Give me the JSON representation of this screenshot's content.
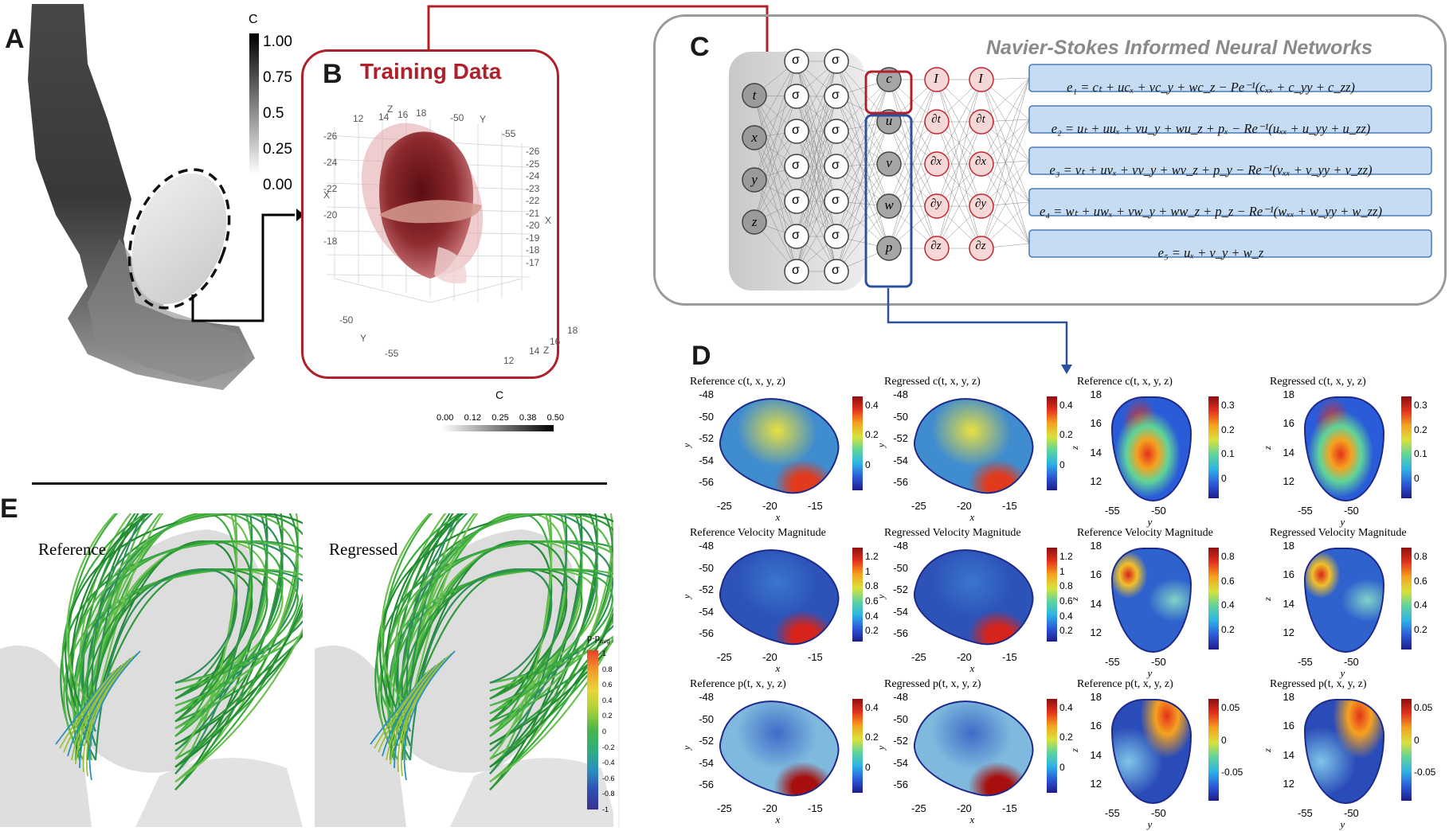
{
  "panels": {
    "A": "A",
    "B": "B",
    "C": "C",
    "D": "D",
    "E": "E"
  },
  "panelA": {
    "colorbar_label": "C",
    "ticks": [
      "1.00",
      "0.75",
      "0.5",
      "0.25",
      "0.00"
    ]
  },
  "panelB": {
    "title": "Training Data",
    "axis_labels": {
      "z_top": "Z",
      "y_top": "Y",
      "x_left": "X",
      "x_right": "X",
      "y_bottom": "Y",
      "z_bottom": "Z"
    },
    "z_ticks_top": [
      "12",
      "14",
      "16",
      "18"
    ],
    "y_ticks_top": [
      "-50",
      "-55"
    ],
    "x_ticks_left": [
      "-26",
      "-24",
      "-22",
      "-20",
      "-18"
    ],
    "right_ticks": [
      "-26",
      "-25",
      "-24",
      "-23",
      "-22",
      "-21",
      "-20",
      "-19",
      "-18",
      "-17"
    ],
    "y_ticks_bottom": [
      "-50",
      "-55"
    ],
    "z_ticks_bottom": [
      "12",
      "14",
      "16",
      "18"
    ],
    "colorbar_label": "C",
    "colorbar_ticks": [
      "0.00",
      "0.12",
      "0.25",
      "0.38",
      "0.50"
    ]
  },
  "panelC": {
    "title": "Navier-Stokes Informed Neural Networks",
    "inputs": [
      "t",
      "x",
      "y",
      "z"
    ],
    "sigma": "σ",
    "outputs": [
      "c",
      "u",
      "v",
      "w",
      "p"
    ],
    "ops_I": "I",
    "ops": [
      "∂t",
      "∂x",
      "∂y",
      "∂z"
    ],
    "equations": [
      "e₁ = cₜ + ucₓ + vc_y + wc_z − Pe⁻¹(cₓₓ + c_yy + c_zz)",
      "e₂ = uₜ + uuₓ + vu_y + wu_z + pₓ − Re⁻¹(uₓₓ + u_yy + u_zz)",
      "e₃ = vₜ + uvₓ + vv_y + wv_z + p_y − Re⁻¹(vₓₓ + v_yy + v_zz)",
      "e₄ = wₜ + uwₓ + vw_y + ww_z + p_z − Re⁻¹(wₓₓ + w_yy + w_zz)",
      "e₅ = uₓ + v_y + w_z"
    ]
  },
  "panelD": {
    "rows": [
      {
        "titles": [
          "Reference c(t, x, y, z)",
          "Regressed c(t, x, y, z)",
          "Reference c(t, x, y, z)",
          "Regressed c(t, x, y, z)"
        ],
        "cb_xy": [
          "0.4",
          "0.2",
          "0"
        ],
        "cb_yz": [
          "0.3",
          "0.2",
          "0.1",
          "0"
        ]
      },
      {
        "titles": [
          "Reference Velocity Magnitude",
          "Regressed Velocity Magnitude",
          "Reference Velocity Magnitude",
          "Regressed Velocity Magnitude"
        ],
        "cb_xy": [
          "1.2",
          "1",
          "0.8",
          "0.6",
          "0.4",
          "0.2"
        ],
        "cb_yz": [
          "0.8",
          "0.6",
          "0.4",
          "0.2"
        ]
      },
      {
        "titles": [
          "Reference p(t, x, y, z)",
          "Regressed p(t, x, y, z)",
          "Reference p(t, x, y, z)",
          "Regressed p(t, x, y, z)"
        ],
        "cb_xy": [
          "0.4",
          "0.2",
          "0"
        ],
        "cb_yz": [
          "0.05",
          "0",
          "-0.05"
        ]
      }
    ],
    "xy_yticks": [
      "-48",
      "-50",
      "-52",
      "-54",
      "-56"
    ],
    "xy_xticks": [
      "-25",
      "-20",
      "-15"
    ],
    "xy_xlabel": "x",
    "xy_ylabel": "y",
    "yz_yticks": [
      "18",
      "16",
      "14",
      "12"
    ],
    "yz_xticks": [
      "-55",
      "-50"
    ],
    "yz_xlabel": "y",
    "yz_ylabel": "z"
  },
  "panelE": {
    "reference": "Reference",
    "regressed": "Regressed",
    "colorbar_label": "p-p",
    "colorbar_sub": "avg",
    "colorbar_ticks": [
      "1",
      "0.8",
      "0.6",
      "0.4",
      "0.2",
      "0",
      "-0.2",
      "-0.4",
      "-0.6",
      "-0.8",
      "-1"
    ]
  }
}
